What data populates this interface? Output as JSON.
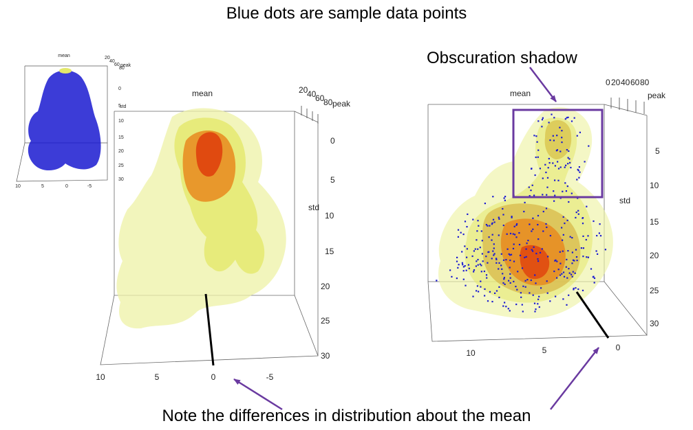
{
  "captions": {
    "top": "Blue dots are sample data points",
    "bottom": "Note the differences in distribution about the mean",
    "shadow": "Obscuration shadow"
  },
  "colors": {
    "dots": "#1a1ad0",
    "outer_surface": "#eef2a6",
    "mid_surface": "#e3e86a",
    "inner_surface": "#e88a1e",
    "core_surface": "#e04a10",
    "annotation": "#6a3aa0"
  },
  "plots": [
    {
      "name": "thumbnail",
      "axis_labels": {
        "x": "mean",
        "y": "std",
        "z": "peak"
      },
      "x_ticks": [
        "10",
        "5",
        "0",
        "-5"
      ],
      "y_ticks": [
        "0",
        "5",
        "10",
        "15",
        "20",
        "25",
        "30"
      ],
      "z_ticks": [
        "20",
        "40",
        "60",
        "80"
      ]
    },
    {
      "name": "middle",
      "axis_labels": {
        "x": "mean",
        "y": "std",
        "z": "peak"
      },
      "x_ticks": [
        "10",
        "5",
        "0",
        "-5"
      ],
      "y_ticks": [
        "0",
        "5",
        "10",
        "15",
        "20",
        "25",
        "30"
      ],
      "z_ticks": [
        "20",
        "40",
        "60",
        "80"
      ]
    },
    {
      "name": "right",
      "axis_labels": {
        "x": "mean",
        "y": "std",
        "z": "peak"
      },
      "x_ticks": [
        "10",
        "5",
        "0"
      ],
      "y_ticks": [
        "5",
        "10",
        "15",
        "20",
        "25",
        "30"
      ],
      "z_ticks": [
        "0",
        "20",
        "40",
        "60",
        "80"
      ]
    }
  ]
}
